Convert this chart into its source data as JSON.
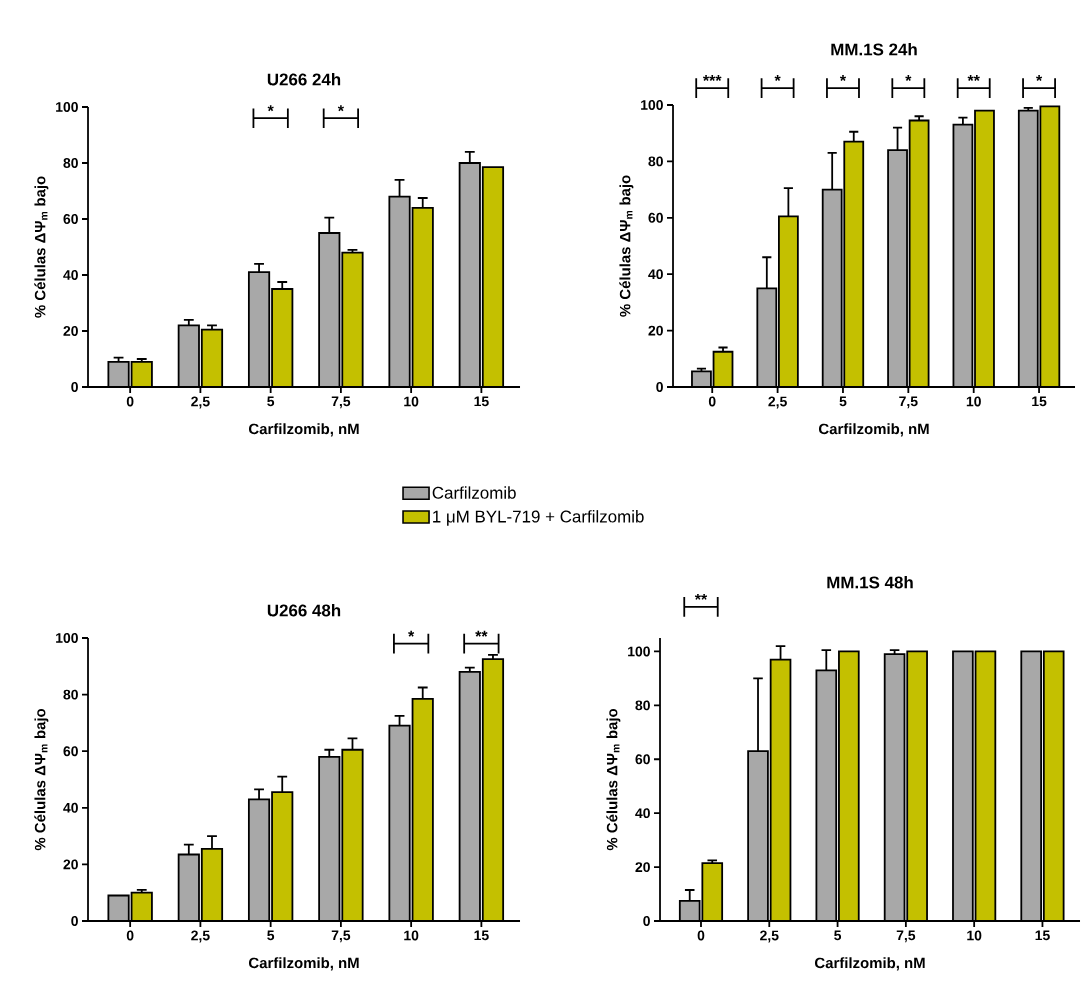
{
  "chart_data": [
    {
      "type": "bar",
      "title": "U266 24h",
      "xlabel": "Carfilzomib, nM",
      "ylabel": "% Células ΔΨ$_{m}$ bajo",
      "categories": [
        "0",
        "2,5",
        "5",
        "7,5",
        "10",
        "15"
      ],
      "ylim": [
        0,
        100
      ],
      "yticks": [
        0,
        20,
        40,
        60,
        80,
        100
      ],
      "legend": "bottom",
      "series": [
        {
          "name": "Carfilzomib",
          "color": "#a8a8a8",
          "values": [
            9,
            22,
            41,
            55,
            68,
            80
          ],
          "errors": [
            1.5,
            2,
            3,
            5.5,
            6,
            4
          ]
        },
        {
          "name": "1 μM BYL-719 + Carfilzomib",
          "color": "#c4c000",
          "values": [
            9,
            20.5,
            35,
            48,
            64,
            78.5
          ],
          "errors": [
            1,
            1.5,
            2.5,
            1,
            3.5,
            null
          ]
        }
      ],
      "annotations": [
        "*",
        "*"
      ]
    },
    {
      "type": "bar",
      "title": "MM.1S 24h",
      "xlabel": "Carfilzomib, nM",
      "ylabel": "% Células ΔΨ$_{m}$ bajo",
      "categories": [
        "0",
        "2,5",
        "5",
        "7,5",
        "10",
        "15"
      ],
      "ylim": [
        0,
        100
      ],
      "yticks": [
        0,
        20,
        40,
        60,
        80,
        100
      ],
      "series": [
        {
          "color": "#a8a8a8",
          "values": [
            5.5,
            35,
            70,
            84,
            93,
            98
          ],
          "errors": [
            1,
            11,
            13,
            8,
            2.5,
            1
          ]
        },
        {
          "color": "#c4c000",
          "values": [
            12.5,
            60.5,
            87,
            94.5,
            98,
            99.5
          ],
          "errors": [
            1.5,
            10,
            3.5,
            1.5,
            null,
            null
          ]
        }
      ],
      "annotations": [
        "***",
        "*",
        "*",
        "*",
        "**",
        "*"
      ]
    },
    {
      "type": "bar",
      "title": "U266 48h",
      "xlabel": "Carfilzomib, nM",
      "ylabel": "% Células ΔΨ$_{m}$ bajo",
      "categories": [
        "0",
        "2,5",
        "5",
        "7,5",
        "10",
        "15"
      ],
      "ylim": [
        0,
        100
      ],
      "yticks": [
        0,
        20,
        40,
        60,
        80,
        100
      ],
      "series": [
        {
          "color": "#a8a8a8",
          "values": [
            9,
            23.5,
            43,
            58,
            69,
            88
          ],
          "errors": [
            null,
            3.5,
            3.5,
            2.5,
            3.5,
            1.5
          ]
        },
        {
          "color": "#c4c000",
          "values": [
            10,
            25.5,
            45.5,
            60.5,
            78.5,
            92.5
          ],
          "errors": [
            1,
            4.5,
            5.5,
            4,
            4,
            1.5
          ]
        }
      ],
      "annotations": [
        "*",
        "**"
      ]
    },
    {
      "type": "bar",
      "title": "MM.1S 48h",
      "xlabel": "Carfilzomib, nM",
      "ylabel": "% Células ΔΨ$_{m}$ bajo",
      "categories": [
        "0",
        "2,5",
        "5",
        "7,5",
        "10",
        "15"
      ],
      "ylim": [
        0,
        105
      ],
      "yticks": [
        0,
        20,
        40,
        60,
        80,
        100
      ],
      "series": [
        {
          "color": "#a8a8a8",
          "values": [
            7.5,
            63,
            93,
            99,
            100,
            100
          ],
          "errors": [
            4,
            27,
            7.5,
            1.5,
            null,
            null
          ]
        },
        {
          "color": "#c4c000",
          "values": [
            21.5,
            97,
            100,
            100,
            100,
            100
          ],
          "errors": [
            1,
            5,
            null,
            null,
            null,
            null
          ]
        }
      ],
      "annotations": [
        "**"
      ]
    }
  ]
}
